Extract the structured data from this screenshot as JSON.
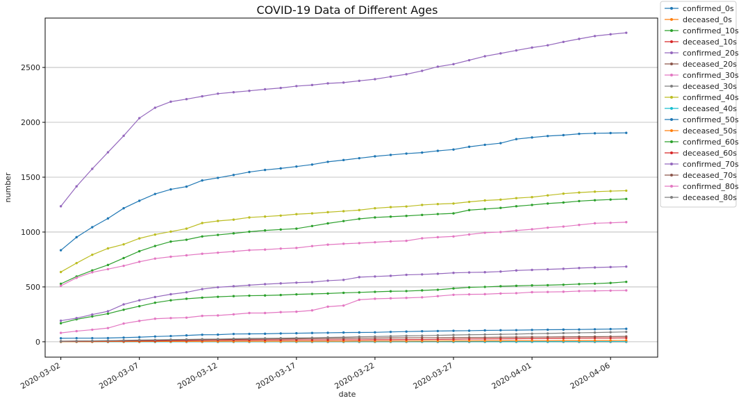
{
  "chart_data": {
    "type": "line",
    "title": "COVID-19 Data of Different Ages",
    "xlabel": "date",
    "ylabel": "number",
    "x_start": "2020-03-02",
    "x_end": "2020-04-07",
    "xlim": [
      "2020-03-01",
      "2020-04-09"
    ],
    "ylim": [
      -140,
      2950
    ],
    "x_ticks": [
      "2020-03-02",
      "2020-03-07",
      "2020-03-12",
      "2020-03-17",
      "2020-03-22",
      "2020-03-27",
      "2020-04-01",
      "2020-04-06"
    ],
    "y_ticks": [
      0,
      500,
      1000,
      1500,
      2000,
      2500
    ],
    "grid": "horizontal",
    "legend_position": "outside-right",
    "series": [
      {
        "name": "confirmed_0s",
        "color": "#1f77b4",
        "values": [
          32,
          33,
          33,
          34,
          38,
          42,
          48,
          52,
          58,
          64,
          65,
          71,
          72,
          73,
          76,
          78,
          80,
          82,
          84,
          85,
          86,
          90,
          93,
          96,
          98,
          100,
          101,
          104,
          105,
          106,
          108,
          110,
          111,
          112,
          114,
          116,
          118
        ]
      },
      {
        "name": "deceased_0s",
        "color": "#ff7f0e",
        "values": [
          0,
          0,
          0,
          0,
          0,
          0,
          0,
          0,
          0,
          0,
          0,
          0,
          0,
          0,
          0,
          0,
          0,
          0,
          0,
          0,
          0,
          0,
          0,
          0,
          0,
          0,
          0,
          0,
          0,
          0,
          0,
          0,
          0,
          0,
          0,
          0,
          0
        ]
      },
      {
        "name": "confirmed_10s",
        "color": "#2ca02c",
        "values": [
          169,
          205,
          231,
          256,
          292,
          324,
          356,
          378,
          392,
          402,
          410,
          416,
          420,
          422,
          426,
          432,
          436,
          440,
          446,
          450,
          455,
          460,
          462,
          468,
          474,
          486,
          496,
          500,
          506,
          510,
          514,
          516,
          520,
          526,
          530,
          536,
          546
        ]
      },
      {
        "name": "deceased_10s",
        "color": "#d62728",
        "values": [
          0,
          0,
          0,
          0,
          0,
          0,
          0,
          0,
          0,
          0,
          0,
          0,
          0,
          0,
          0,
          0,
          0,
          0,
          0,
          0,
          0,
          0,
          0,
          0,
          0,
          0,
          0,
          0,
          0,
          0,
          0,
          0,
          0,
          0,
          0,
          0,
          0
        ]
      },
      {
        "name": "confirmed_20s",
        "color": "#9467bd",
        "values": [
          1235,
          1416,
          1576,
          1727,
          1877,
          2038,
          2133,
          2188,
          2211,
          2237,
          2261,
          2274,
          2287,
          2301,
          2313,
          2330,
          2340,
          2355,
          2362,
          2378,
          2393,
          2416,
          2438,
          2469,
          2507,
          2530,
          2566,
          2602,
          2628,
          2655,
          2681,
          2702,
          2733,
          2760,
          2786,
          2802,
          2816
        ]
      },
      {
        "name": "deceased_20s",
        "color": "#8c564b",
        "values": [
          0,
          0,
          0,
          0,
          0,
          0,
          0,
          0,
          0,
          0,
          0,
          0,
          0,
          0,
          0,
          0,
          0,
          0,
          0,
          0,
          0,
          0,
          0,
          0,
          0,
          0,
          0,
          0,
          0,
          0,
          0,
          0,
          0,
          0,
          0,
          0,
          0
        ]
      },
      {
        "name": "confirmed_30s",
        "color": "#e377c2",
        "values": [
          81,
          97,
          110,
          125,
          166,
          190,
          210,
          216,
          220,
          236,
          240,
          250,
          262,
          262,
          270,
          274,
          286,
          320,
          330,
          383,
          392,
          396,
          400,
          405,
          416,
          428,
          432,
          434,
          440,
          443,
          452,
          454,
          456,
          462,
          464,
          466,
          468
        ]
      },
      {
        "name": "deceased_30s",
        "color": "#7f7f7f",
        "values": [
          0,
          0,
          0,
          0,
          0,
          0,
          0,
          0,
          0,
          0,
          0,
          0,
          0,
          0,
          0,
          0,
          0,
          0,
          0,
          0,
          1,
          1,
          1,
          1,
          1,
          1,
          1,
          1,
          1,
          1,
          1,
          1,
          1,
          1,
          2,
          2,
          2
        ]
      },
      {
        "name": "confirmed_40s",
        "color": "#bcbd22",
        "values": [
          636,
          717,
          793,
          851,
          888,
          942,
          977,
          1004,
          1031,
          1082,
          1101,
          1113,
          1133,
          1141,
          1150,
          1163,
          1170,
          1181,
          1190,
          1200,
          1217,
          1227,
          1233,
          1247,
          1255,
          1260,
          1275,
          1288,
          1295,
          1309,
          1318,
          1334,
          1350,
          1360,
          1368,
          1373,
          1377
        ]
      },
      {
        "name": "deceased_40s",
        "color": "#17becf",
        "values": [
          0,
          0,
          0,
          0,
          0,
          0,
          0,
          0,
          1,
          1,
          1,
          1,
          1,
          1,
          1,
          1,
          1,
          1,
          1,
          1,
          1,
          1,
          1,
          1,
          1,
          1,
          1,
          1,
          1,
          1,
          1,
          1,
          2,
          2,
          2,
          2,
          2
        ]
      },
      {
        "name": "confirmed_50s",
        "color": "#1f77b4",
        "values": [
          834,
          953,
          1044,
          1124,
          1217,
          1285,
          1347,
          1389,
          1414,
          1470,
          1494,
          1520,
          1547,
          1566,
          1580,
          1597,
          1615,
          1640,
          1656,
          1673,
          1690,
          1703,
          1715,
          1724,
          1740,
          1752,
          1777,
          1795,
          1810,
          1847,
          1862,
          1875,
          1883,
          1895,
          1900,
          1902,
          1904
        ]
      },
      {
        "name": "deceased_50s",
        "color": "#ff7f0e",
        "values": [
          1,
          1,
          1,
          2,
          2,
          2,
          3,
          3,
          3,
          3,
          4,
          4,
          4,
          4,
          4,
          5,
          5,
          5,
          5,
          6,
          6,
          6,
          6,
          7,
          7,
          8,
          8,
          9,
          9,
          10,
          10,
          10,
          11,
          11,
          12,
          12,
          13
        ]
      },
      {
        "name": "confirmed_60s",
        "color": "#2ca02c",
        "values": [
          528,
          595,
          650,
          700,
          763,
          825,
          873,
          913,
          930,
          960,
          974,
          988,
          1003,
          1015,
          1023,
          1031,
          1055,
          1079,
          1100,
          1120,
          1133,
          1140,
          1147,
          1156,
          1164,
          1170,
          1200,
          1210,
          1220,
          1235,
          1247,
          1260,
          1269,
          1282,
          1290,
          1296,
          1302
        ]
      },
      {
        "name": "deceased_60s",
        "color": "#d62728",
        "values": [
          3,
          4,
          5,
          6,
          7,
          8,
          8,
          10,
          11,
          13,
          14,
          15,
          15,
          16,
          16,
          17,
          17,
          17,
          18,
          18,
          19,
          19,
          20,
          21,
          22,
          23,
          25,
          26,
          27,
          28,
          29,
          31,
          32,
          33,
          34,
          34,
          35
        ]
      },
      {
        "name": "confirmed_70s",
        "color": "#9467bd",
        "values": [
          192,
          216,
          248,
          278,
          341,
          378,
          408,
          433,
          451,
          480,
          497,
          506,
          516,
          525,
          532,
          539,
          544,
          557,
          564,
          589,
          595,
          601,
          610,
          614,
          620,
          628,
          632,
          634,
          640,
          650,
          655,
          660,
          665,
          672,
          677,
          681,
          685
        ]
      },
      {
        "name": "deceased_70s",
        "color": "#8c564b",
        "values": [
          6,
          7,
          8,
          10,
          12,
          13,
          15,
          16,
          18,
          19,
          21,
          22,
          24,
          26,
          27,
          28,
          29,
          30,
          32,
          33,
          34,
          35,
          36,
          37,
          37,
          38,
          39,
          40,
          41,
          42,
          43,
          44,
          45,
          46,
          47,
          48,
          49
        ]
      },
      {
        "name": "confirmed_80s",
        "color": "#e377c2",
        "values": [
          510,
          583,
          633,
          662,
          692,
          729,
          758,
          775,
          788,
          802,
          812,
          823,
          835,
          840,
          849,
          855,
          872,
          885,
          893,
          899,
          907,
          915,
          920,
          943,
          953,
          960,
          978,
          994,
          1000,
          1014,
          1025,
          1040,
          1050,
          1065,
          1080,
          1084,
          1090
        ]
      },
      {
        "name": "deceased_80s",
        "color": "#7f7f7f",
        "values": [
          4,
          6,
          8,
          10,
          13,
          16,
          18,
          20,
          22,
          24,
          25,
          28,
          30,
          31,
          33,
          35,
          37,
          40,
          42,
          46,
          48,
          51,
          54,
          56,
          59,
          62,
          64,
          66,
          68,
          70,
          74,
          76,
          79,
          82,
          84,
          87,
          90
        ]
      }
    ]
  }
}
